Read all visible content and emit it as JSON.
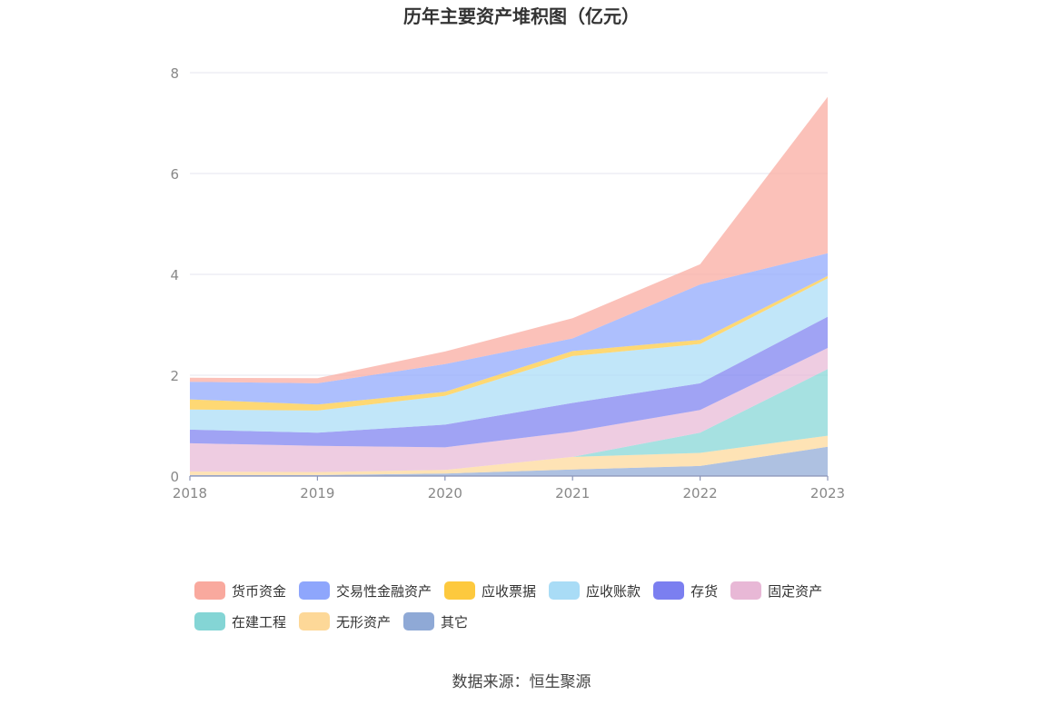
{
  "chart_data": {
    "type": "area",
    "stacked": true,
    "title": "历年主要资产堆积图（亿元）",
    "x": [
      "2018",
      "2019",
      "2020",
      "2021",
      "2022",
      "2023"
    ],
    "yticks": [
      "0",
      "2",
      "4",
      "6",
      "8"
    ],
    "ylim": [
      0,
      8
    ],
    "grid": true,
    "legend_position": "bottom",
    "series": [
      {
        "name": "其它",
        "color": "#8fa9d6",
        "values": [
          0.02,
          0.02,
          0.05,
          0.13,
          0.2,
          0.58
        ]
      },
      {
        "name": "无形资产",
        "color": "#fdd898",
        "values": [
          0.07,
          0.06,
          0.07,
          0.25,
          0.26,
          0.22
        ]
      },
      {
        "name": "在建工程",
        "color": "#84d5d5",
        "values": [
          0.0,
          0.0,
          0.0,
          0.0,
          0.4,
          1.32
        ]
      },
      {
        "name": "固定资产",
        "color": "#e8b8d6",
        "values": [
          0.56,
          0.52,
          0.45,
          0.5,
          0.45,
          0.42
        ]
      },
      {
        "name": "存货",
        "color": "#7b7ff0",
        "values": [
          0.27,
          0.26,
          0.45,
          0.57,
          0.53,
          0.62
        ]
      },
      {
        "name": "应收账款",
        "color": "#a9dcf6",
        "values": [
          0.4,
          0.44,
          0.57,
          0.93,
          0.78,
          0.76
        ]
      },
      {
        "name": "应收票据",
        "color": "#fdc93e",
        "values": [
          0.2,
          0.12,
          0.08,
          0.1,
          0.08,
          0.05
        ]
      },
      {
        "name": "交易性金融资产",
        "color": "#8ea6fc",
        "values": [
          0.35,
          0.42,
          0.55,
          0.25,
          1.1,
          0.45
        ]
      },
      {
        "name": "货币资金",
        "color": "#f9a99e",
        "values": [
          0.08,
          0.1,
          0.25,
          0.4,
          0.4,
          3.1
        ]
      }
    ]
  },
  "legend_order": [
    "货币资金",
    "交易性金融资产",
    "应收票据",
    "应收账款",
    "存货",
    "固定资产",
    "在建工程",
    "无形资产",
    "其它"
  ],
  "source": "数据来源：恒生聚源"
}
